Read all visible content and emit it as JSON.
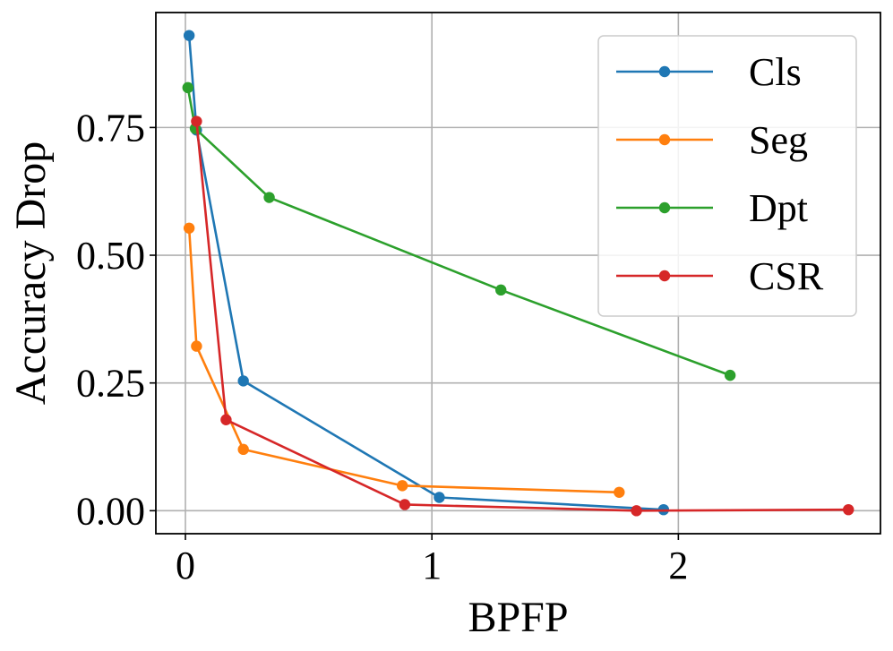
{
  "chart_data": {
    "type": "line",
    "title": "",
    "xlabel": "BPFP",
    "ylabel": "Accuracy Drop",
    "xlim": [
      -0.12,
      2.82
    ],
    "ylim": [
      -0.045,
      0.975
    ],
    "grid": true,
    "x_ticks": [
      0,
      1,
      2
    ],
    "x_tick_labels": [
      "0",
      "1",
      "2"
    ],
    "y_ticks": [
      0.0,
      0.25,
      0.5,
      0.75
    ],
    "y_tick_labels": [
      "0.00",
      "0.25",
      "0.50",
      "0.75"
    ],
    "legend_position": "top-right",
    "series": [
      {
        "name": "Cls",
        "color": "#1f77b4",
        "x": [
          0.015,
          0.045,
          0.235,
          1.03,
          1.94
        ],
        "y": [
          0.93,
          0.745,
          0.254,
          0.026,
          0.002
        ]
      },
      {
        "name": "Seg",
        "color": "#ff7f0e",
        "x": [
          0.015,
          0.045,
          0.235,
          0.88,
          1.76
        ],
        "y": [
          0.553,
          0.322,
          0.12,
          0.049,
          0.036
        ]
      },
      {
        "name": "Dpt",
        "color": "#2ca02c",
        "x": [
          0.01,
          0.04,
          0.34,
          1.28,
          2.21
        ],
        "y": [
          0.828,
          0.748,
          0.613,
          0.432,
          0.265
        ]
      },
      {
        "name": "CSR",
        "color": "#d62728",
        "x": [
          0.045,
          0.165,
          0.89,
          1.83,
          2.69
        ],
        "y": [
          0.762,
          0.178,
          0.012,
          0.0,
          0.002
        ]
      }
    ]
  }
}
